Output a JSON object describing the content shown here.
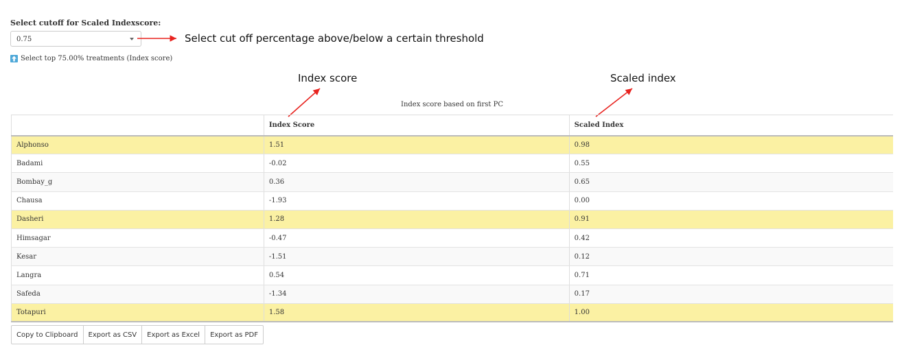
{
  "cutoff": {
    "label": "Select cutoff for Scaled Indexscore:",
    "selected_value": "0.75"
  },
  "annotations": {
    "select_note": "Select cut off percentage above/below a certain threshold",
    "index_score_note": "Index score",
    "scaled_index_note": "Scaled index"
  },
  "info": {
    "icon": "up-arrow-icon",
    "text": "Select top 75.00% treatments (Index score)"
  },
  "table": {
    "caption": "Index score based on first PC",
    "headers": [
      "",
      "Index Score",
      "Scaled Index"
    ],
    "rows": [
      {
        "name": "Alphonso",
        "index_score": "1.51",
        "scaled_index": "0.98",
        "highlighted": true
      },
      {
        "name": "Badami",
        "index_score": "-0.02",
        "scaled_index": "0.55",
        "highlighted": false
      },
      {
        "name": "Bombay_g",
        "index_score": "0.36",
        "scaled_index": "0.65",
        "highlighted": false
      },
      {
        "name": "Chausa",
        "index_score": "-1.93",
        "scaled_index": "0.00",
        "highlighted": false
      },
      {
        "name": "Dasheri",
        "index_score": "1.28",
        "scaled_index": "0.91",
        "highlighted": true
      },
      {
        "name": "Himsagar",
        "index_score": "-0.47",
        "scaled_index": "0.42",
        "highlighted": false
      },
      {
        "name": "Kesar",
        "index_score": "-1.51",
        "scaled_index": "0.12",
        "highlighted": false
      },
      {
        "name": "Langra",
        "index_score": "0.54",
        "scaled_index": "0.71",
        "highlighted": false
      },
      {
        "name": "Safeda",
        "index_score": "-1.34",
        "scaled_index": "0.17",
        "highlighted": false
      },
      {
        "name": "Totapuri",
        "index_score": "1.58",
        "scaled_index": "1.00",
        "highlighted": true
      }
    ]
  },
  "export": {
    "buttons": [
      "Copy to Clipboard",
      "Export as CSV",
      "Export as Excel",
      "Export as PDF"
    ]
  },
  "colors": {
    "highlight_row": "#fbf1a3",
    "annotation_arrow": "#e8231f",
    "info_icon": "#4ea8d8"
  }
}
